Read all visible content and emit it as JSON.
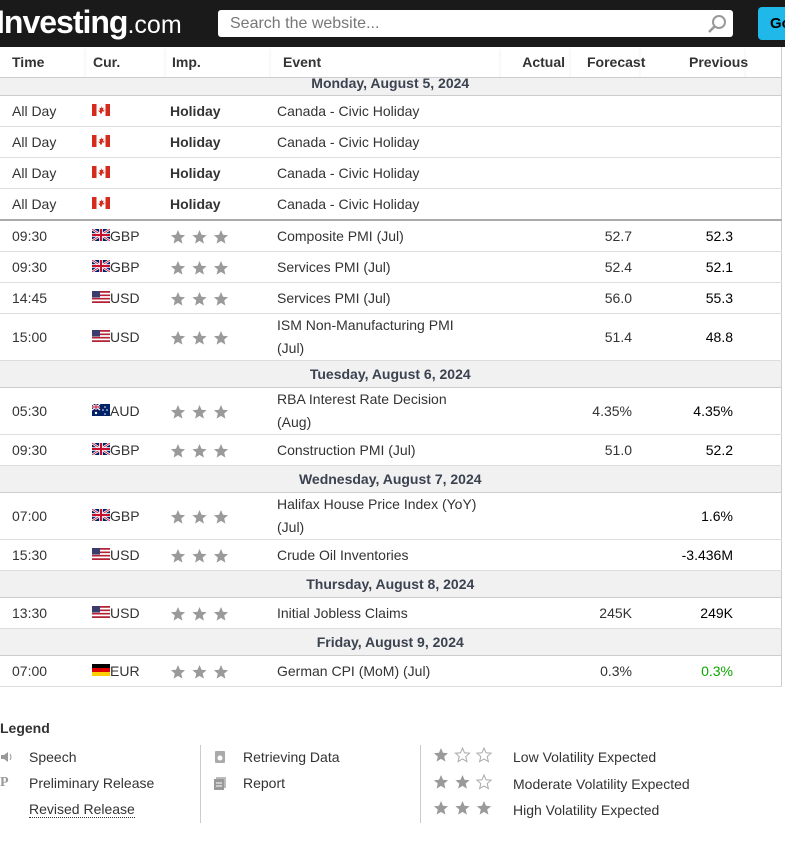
{
  "header": {
    "logo": "Investing",
    "logo_suffix": ".com",
    "search_placeholder": "Search the website...",
    "button": "Go"
  },
  "table": {
    "columns": [
      "Time",
      "Cur.",
      "Imp.",
      "Event",
      "Actual",
      "Forecast",
      "Previous"
    ],
    "sections": [
      {
        "date": "Monday, August 5, 2024",
        "rows": [
          {
            "time": "All Day",
            "impact": "Holiday",
            "event": "Canada - Civic Holiday"
          },
          {
            "time": "All Day",
            "impact": "Holiday",
            "event": "Canada - Civic Holiday"
          },
          {
            "time": "All Day",
            "impact": "Holiday",
            "event": "Canada - Civic Holiday"
          },
          {
            "time": "All Day",
            "impact": "Holiday",
            "event": "Canada - Civic Holiday"
          },
          {
            "time": "09:30",
            "currency": "GBP",
            "stars": 3,
            "event": "Composite PMI (Jul)",
            "forecast": "52.7",
            "previous": "52.3"
          },
          {
            "time": "09:30",
            "currency": "GBP",
            "stars": 3,
            "event": "Services PMI (Jul)",
            "forecast": "52.4",
            "previous": "52.1"
          },
          {
            "time": "14:45",
            "currency": "USD",
            "stars": 3,
            "event": "Services PMI (Jul)",
            "forecast": "56.0",
            "previous": "55.3"
          },
          {
            "time": "15:00",
            "currency": "USD",
            "stars": 3,
            "event": "ISM Non-Manufacturing PMI (Jul)",
            "forecast": "51.4",
            "previous": "48.8"
          }
        ]
      },
      {
        "date": "Tuesday, August 6, 2024",
        "rows": [
          {
            "time": "05:30",
            "currency": "AUD",
            "stars": 3,
            "event": "RBA Interest Rate Decision (Aug)",
            "forecast": "4.35%",
            "previous": "4.35%"
          },
          {
            "time": "09:30",
            "currency": "GBP",
            "stars": 3,
            "event": "Construction PMI (Jul)",
            "forecast": "51.0",
            "previous": "52.2"
          }
        ]
      },
      {
        "date": "Wednesday, August 7, 2024",
        "rows": [
          {
            "time": "07:00",
            "currency": "GBP",
            "stars": 3,
            "event": "Halifax House Price Index (YoY) (Jul)",
            "previous": "1.6%"
          },
          {
            "time": "15:30",
            "currency": "USD",
            "stars": 3,
            "event": "Crude Oil Inventories",
            "previous": "-3.436M"
          }
        ]
      },
      {
        "date": "Thursday, August 8, 2024",
        "rows": [
          {
            "time": "13:30",
            "currency": "USD",
            "stars": 3,
            "event": "Initial Jobless Claims",
            "forecast": "245K",
            "previous": "249K"
          }
        ]
      },
      {
        "date": "Friday, August 9, 2024",
        "rows": [
          {
            "time": "07:00",
            "currency": "EUR",
            "stars": 3,
            "event": "German CPI (MoM) (Jul)",
            "forecast": "0.3%",
            "previous": "0.3%",
            "previous_color": "#0ea600"
          }
        ]
      }
    ]
  },
  "legend": {
    "title": "Legend",
    "items": [
      "Speech",
      "Preliminary Release",
      "Revised Release",
      "Retrieving Data",
      "Report"
    ],
    "volatility": [
      {
        "label": "Low Volatility Expected",
        "stars": 1
      },
      {
        "label": "Moderate Volatility Expected",
        "stars": 2
      },
      {
        "label": "High Volatility Expected",
        "stars": 3
      }
    ]
  }
}
